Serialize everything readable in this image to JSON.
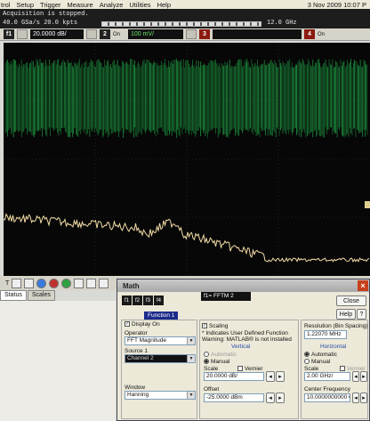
{
  "menubar": {
    "items": [
      "trol",
      "Setup",
      "Trigger",
      "Measure",
      "Analyze",
      "Utilities",
      "Help"
    ],
    "datetime": "3 Nov 2009 10:07 P"
  },
  "status": {
    "line1": "Acquisition is stopped.",
    "line2": "40.0 GSa/s   20.0 kpts",
    "freq": "12.0 GHz"
  },
  "channels": {
    "f1": "f1",
    "f1_scale": "20.0000 dB/",
    "ch2": "2",
    "ch2_on": "On",
    "ch2_scale": "100 mV/",
    "ch3": "3",
    "ch4": "4",
    "ch4_on": "On"
  },
  "tabs": [
    "Status",
    "Scales"
  ],
  "math_dialog": {
    "title": "Math",
    "fn_buttons": [
      "f1",
      "f2",
      "f3",
      "f4"
    ],
    "function_tab": "Function 1",
    "func_chip": "f1=  FFTM 2",
    "display_on": "Display On",
    "operator_label": "Operator",
    "operator_value": "FFT Magnitude",
    "source_label": "Source 1",
    "source_value": "Channel 2",
    "window_label": "Window",
    "window_value": "Hanning",
    "scaling_label": "Scaling",
    "note1": "* Indicates User Defined Function",
    "note2": "Warning: MATLAB® is not installed",
    "vertical": "Vertical",
    "v_auto": "Automatic",
    "v_manual": "Manual",
    "v_scale": "Scale",
    "v_vernier": "Vernier",
    "v_scale_value": "20.0000 dB/",
    "offset_label": "Offset",
    "offset_value": "-25.0000 dBm",
    "resolution_label": "Resolution (Bin Spacing)",
    "resolution_value": "1.22070 MHz",
    "horizontal": "Horizontal",
    "h_auto": "Automatic",
    "h_manual": "Manual",
    "h_scale": "Scale",
    "h_vernier": "Vernier",
    "h_scale_value": "2.00 GHz/",
    "center_label": "Center Frequency",
    "center_value": "10.0000000000 GHz",
    "close_btn": "Close",
    "help_btn": "Help"
  },
  "colors": {
    "trace_green": "#22b04a",
    "trace_fft": "#f2dca6",
    "screen": "#070707"
  }
}
